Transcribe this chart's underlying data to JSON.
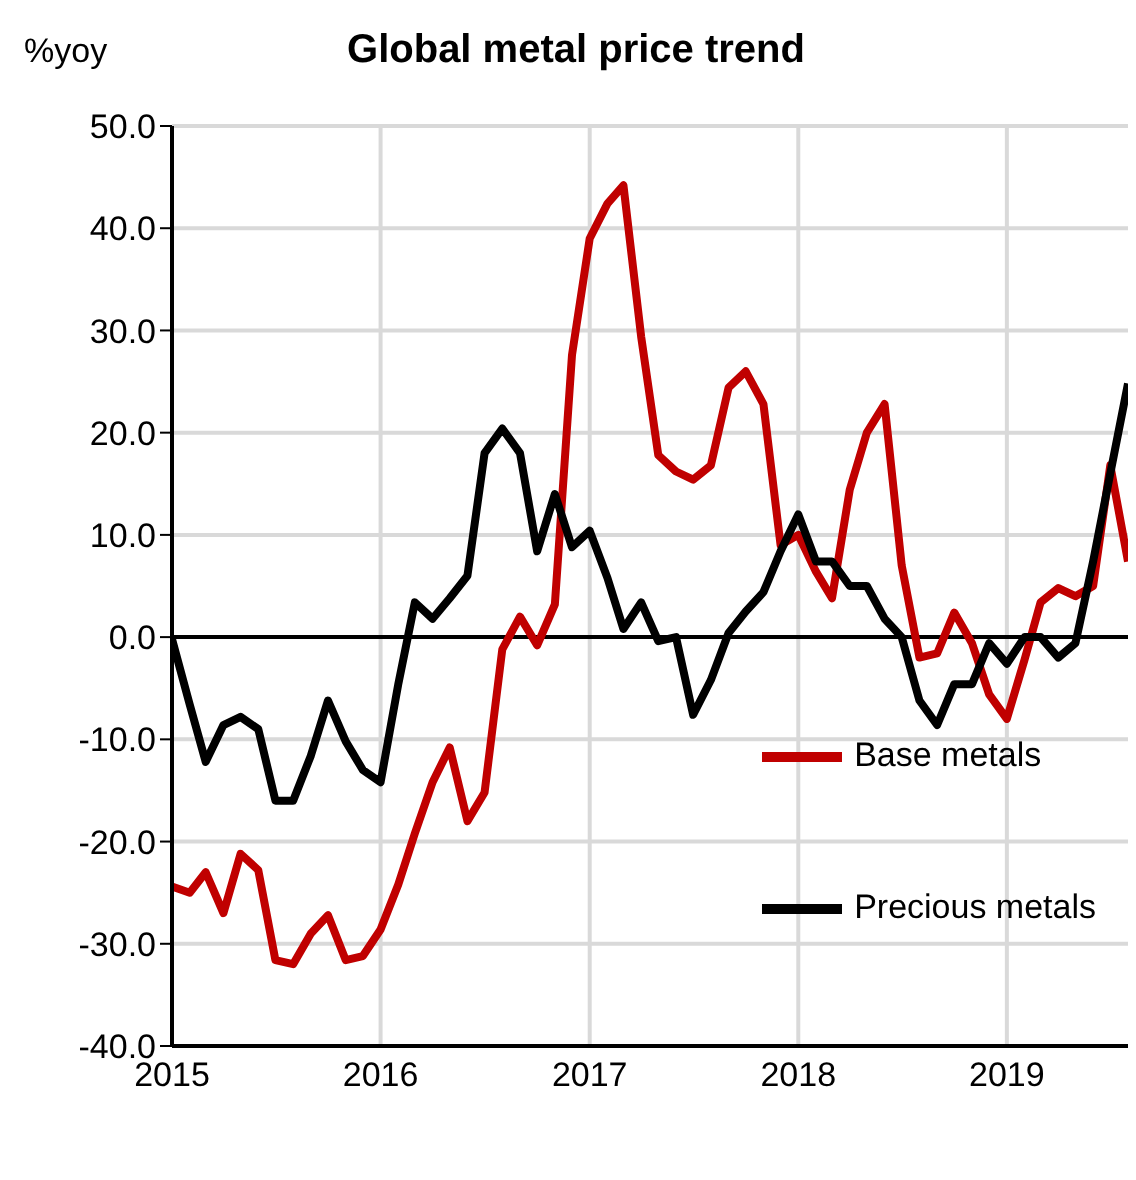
{
  "chart_data": {
    "type": "line",
    "title": "Global metal price trend",
    "ylabel": "%yoy",
    "x": [
      "2015-01",
      "2015-02",
      "2015-03",
      "2015-04",
      "2015-05",
      "2015-06",
      "2015-07",
      "2015-08",
      "2015-09",
      "2015-10",
      "2015-11",
      "2015-12",
      "2016-01",
      "2016-02",
      "2016-03",
      "2016-04",
      "2016-05",
      "2016-06",
      "2016-07",
      "2016-08",
      "2016-09",
      "2016-10",
      "2016-11",
      "2016-12",
      "2017-01",
      "2017-02",
      "2017-03",
      "2017-04",
      "2017-05",
      "2017-06",
      "2017-07",
      "2017-08",
      "2017-09",
      "2017-10",
      "2017-11",
      "2017-12",
      "2018-01",
      "2018-02",
      "2018-03",
      "2018-04",
      "2018-05",
      "2018-06",
      "2018-07",
      "2018-08",
      "2018-09",
      "2018-10",
      "2018-11",
      "2018-12",
      "2019-01",
      "2019-02",
      "2019-03",
      "2019-04",
      "2019-05",
      "2019-06",
      "2019-07",
      "2019-08"
    ],
    "series": [
      {
        "name": "Base metals",
        "color": "#c00000",
        "values": [
          -24.4,
          -25,
          -23,
          -27,
          -21.2,
          -22.8,
          -31.6,
          -32,
          -29,
          -27.2,
          -31.6,
          -31.2,
          -28.6,
          -24.2,
          -19.2,
          -14.2,
          -10.8,
          -18,
          -15.2,
          -1.2,
          2,
          -0.8,
          3.2,
          27.6,
          39,
          42.4,
          44.2,
          29.4,
          17.8,
          16.2,
          15.4,
          16.8,
          24.4,
          26,
          22.8,
          9,
          10,
          6.4,
          3.8,
          14.4,
          20,
          22.8,
          7,
          -2,
          -1.6,
          2.4,
          -0.6,
          -5.6,
          -8,
          -2.2,
          3.4,
          4.8,
          4,
          5,
          16.8,
          7.4
        ]
      },
      {
        "name": "Precious metals",
        "color": "#000000",
        "values": [
          -0.2,
          -6.6,
          -12.2,
          -8.6,
          -7.8,
          -9,
          -16,
          -16,
          -11.6,
          -6.2,
          -10.2,
          -13,
          -14.2,
          -4.6,
          3.4,
          1.8,
          3.8,
          6,
          18,
          20.4,
          18,
          8.4,
          14,
          8.8,
          10.4,
          5.8,
          0.8,
          3.4,
          -0.4,
          0,
          -7.6,
          -4.2,
          0.4,
          2.5,
          4.4,
          8.4,
          12,
          7.4,
          7.4,
          5,
          5,
          1.8,
          0,
          -6.2,
          -8.6,
          -4.6,
          -4.6,
          -0.6,
          -2.6,
          0,
          0,
          -2,
          -0.6,
          7.4,
          16,
          24.8
        ]
      }
    ],
    "xlim": [
      "2015-01",
      "2019-08"
    ],
    "xticks": [
      "2015",
      "2016",
      "2017",
      "2018",
      "2019"
    ],
    "ylim": [
      -40,
      50
    ],
    "yticks": [
      {
        "value": -40,
        "label": "-40.0"
      },
      {
        "value": -30,
        "label": "-30.0"
      },
      {
        "value": -20,
        "label": "-20.0"
      },
      {
        "value": -10,
        "label": "-10.0"
      },
      {
        "value": 0,
        "label": "0.0"
      },
      {
        "value": 10,
        "label": "10.0"
      },
      {
        "value": 20,
        "label": "20.0"
      },
      {
        "value": 30,
        "label": "30.0"
      },
      {
        "value": 40,
        "label": "40.0"
      },
      {
        "value": 50,
        "label": "50.0"
      }
    ],
    "ref_lines": [
      {
        "axis": "y",
        "value": 0,
        "color": "#000000"
      }
    ],
    "grid": true,
    "legend": "bottom right",
    "marker": "none",
    "line_style": "solid"
  }
}
